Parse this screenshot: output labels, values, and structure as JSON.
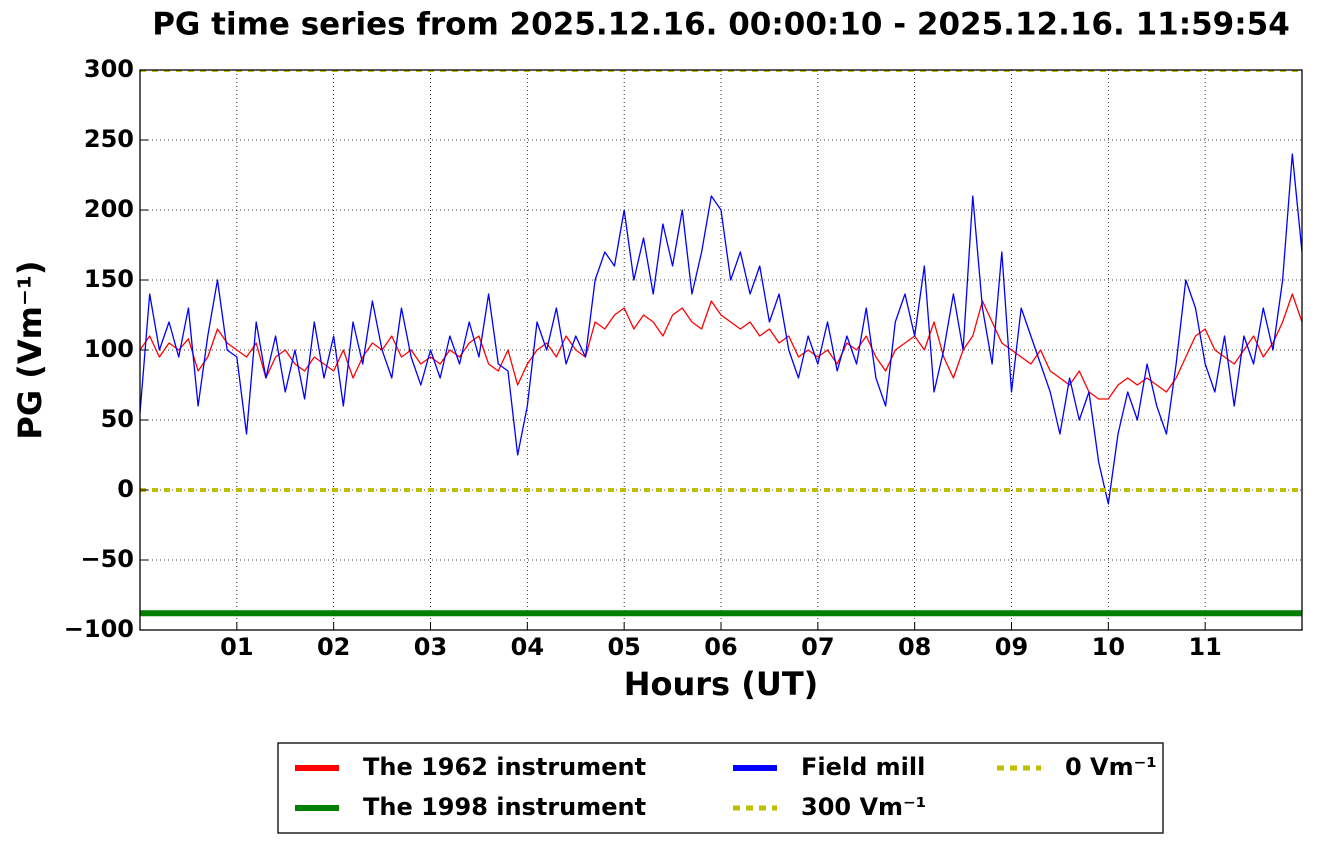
{
  "chart_data": {
    "type": "line",
    "title": "PG time series from 2025.12.16. 00:00:10 - 2025.12.16. 11:59:54",
    "xlabel": "Hours (UT)",
    "ylabel": "PG (Vm⁻¹)",
    "x": [
      0,
      0.1,
      0.2,
      0.3,
      0.4,
      0.5,
      0.6,
      0.7,
      0.8,
      0.9,
      1,
      1.1,
      1.2,
      1.3,
      1.4,
      1.5,
      1.6,
      1.7,
      1.8,
      1.9,
      2,
      2.1,
      2.2,
      2.3,
      2.4,
      2.5,
      2.6,
      2.7,
      2.8,
      2.9,
      3,
      3.1,
      3.2,
      3.3,
      3.4,
      3.5,
      3.6,
      3.7,
      3.8,
      3.9,
      4,
      4.1,
      4.2,
      4.3,
      4.4,
      4.5,
      4.6,
      4.7,
      4.8,
      4.9,
      5,
      5.1,
      5.2,
      5.3,
      5.4,
      5.5,
      5.6,
      5.7,
      5.8,
      5.9,
      6,
      6.1,
      6.2,
      6.3,
      6.4,
      6.5,
      6.6,
      6.7,
      6.8,
      6.9,
      7,
      7.1,
      7.2,
      7.3,
      7.4,
      7.5,
      7.6,
      7.7,
      7.8,
      7.9,
      8,
      8.1,
      8.2,
      8.3,
      8.4,
      8.5,
      8.6,
      8.7,
      8.8,
      8.9,
      9,
      9.1,
      9.2,
      9.3,
      9.4,
      9.5,
      9.6,
      9.7,
      9.8,
      9.9,
      10,
      10.1,
      10.2,
      10.3,
      10.4,
      10.5,
      10.6,
      10.7,
      10.8,
      10.9,
      11,
      11.1,
      11.2,
      11.3,
      11.4,
      11.5,
      11.6,
      11.7,
      11.8,
      11.9,
      12
    ],
    "series": [
      {
        "name": "The 1962 instrument",
        "color": "#ff0000",
        "width": 1.3,
        "values": [
          100,
          110,
          95,
          105,
          100,
          108,
          85,
          95,
          115,
          105,
          100,
          95,
          105,
          80,
          95,
          100,
          90,
          85,
          95,
          90,
          85,
          100,
          80,
          95,
          105,
          100,
          110,
          95,
          100,
          90,
          95,
          90,
          100,
          95,
          105,
          110,
          90,
          85,
          100,
          75,
          90,
          100,
          105,
          95,
          110,
          100,
          95,
          120,
          115,
          125,
          130,
          115,
          125,
          120,
          110,
          125,
          130,
          120,
          115,
          135,
          125,
          120,
          115,
          120,
          110,
          115,
          105,
          110,
          95,
          100,
          95,
          100,
          90,
          105,
          100,
          110,
          95,
          85,
          100,
          105,
          110,
          100,
          120,
          95,
          80,
          100,
          110,
          135,
          120,
          105,
          100,
          95,
          90,
          100,
          85,
          80,
          75,
          85,
          70,
          65,
          65,
          75,
          80,
          75,
          80,
          75,
          70,
          80,
          95,
          110,
          115,
          100,
          95,
          90,
          100,
          110,
          95,
          105,
          120,
          140,
          120
        ]
      },
      {
        "name": "The 1998 instrument",
        "color": "#008000",
        "width": 6,
        "x": [
          0,
          12
        ],
        "values": [
          -88,
          -88
        ]
      },
      {
        "name": "Field mill",
        "color": "#0000ff",
        "width": 1.3,
        "values": [
          55,
          140,
          100,
          120,
          95,
          130,
          60,
          110,
          150,
          100,
          95,
          40,
          120,
          80,
          110,
          70,
          100,
          65,
          120,
          80,
          110,
          60,
          120,
          90,
          135,
          100,
          80,
          130,
          95,
          75,
          100,
          80,
          110,
          90,
          120,
          95,
          140,
          90,
          85,
          25,
          60,
          120,
          100,
          130,
          90,
          110,
          95,
          150,
          170,
          160,
          200,
          150,
          180,
          140,
          190,
          160,
          200,
          140,
          170,
          210,
          200,
          150,
          170,
          140,
          160,
          120,
          140,
          100,
          80,
          110,
          90,
          120,
          85,
          110,
          90,
          130,
          80,
          60,
          120,
          140,
          110,
          160,
          70,
          100,
          140,
          100,
          210,
          130,
          90,
          170,
          70,
          130,
          110,
          90,
          70,
          40,
          80,
          50,
          70,
          20,
          -10,
          40,
          70,
          50,
          90,
          60,
          40,
          90,
          150,
          130,
          90,
          70,
          110,
          60,
          110,
          90,
          130,
          100,
          150,
          240,
          170
        ]
      },
      {
        "name": "300 Vm⁻¹",
        "color": "#bfbf00",
        "width": 4,
        "linestyle": "dashed",
        "x": [
          0,
          12
        ],
        "values": [
          300,
          300
        ]
      },
      {
        "name": "0 Vm⁻¹",
        "color": "#bfbf00",
        "width": 4,
        "linestyle": "dashed",
        "x": [
          0,
          12
        ],
        "values": [
          0,
          0
        ]
      }
    ],
    "xlim": [
      0,
      12
    ],
    "xticks": [
      {
        "value": 1,
        "label": "01"
      },
      {
        "value": 2,
        "label": "02"
      },
      {
        "value": 3,
        "label": "03"
      },
      {
        "value": 4,
        "label": "04"
      },
      {
        "value": 5,
        "label": "05"
      },
      {
        "value": 6,
        "label": "06"
      },
      {
        "value": 7,
        "label": "07"
      },
      {
        "value": 8,
        "label": "08"
      },
      {
        "value": 9,
        "label": "09"
      },
      {
        "value": 10,
        "label": "10"
      },
      {
        "value": 11,
        "label": "11"
      }
    ],
    "ylim": [
      -100,
      300
    ],
    "yticks": [
      {
        "value": -100,
        "label": "−100"
      },
      {
        "value": -50,
        "label": "−50"
      },
      0,
      50,
      100,
      150,
      200,
      250,
      300
    ],
    "grid": true,
    "legend": "below"
  }
}
